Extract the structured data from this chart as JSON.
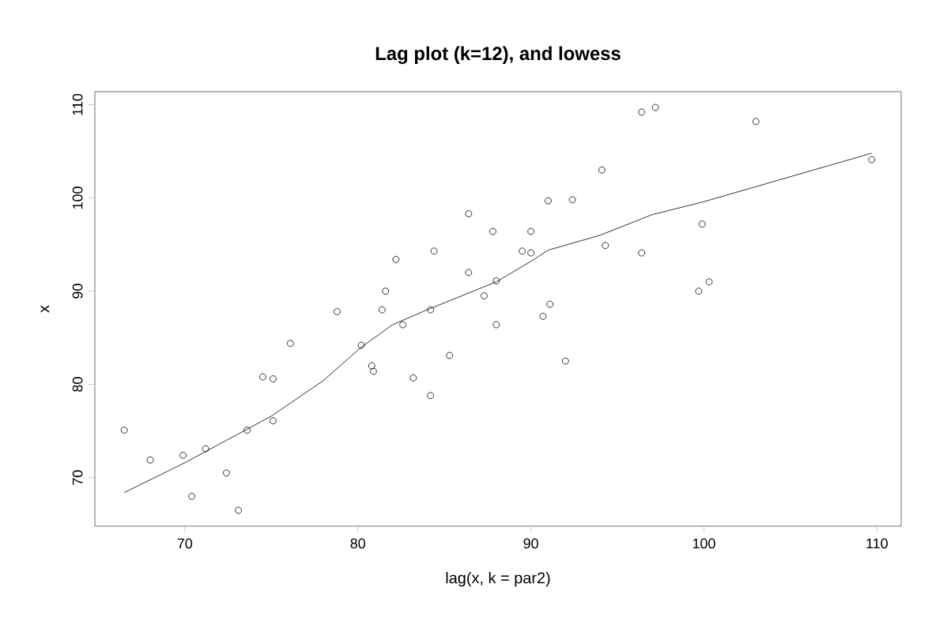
{
  "chart_data": {
    "type": "scatter",
    "title": "Lag plot (k=12), and lowess",
    "xlabel": "lag(x, k = par2)",
    "ylabel": "x",
    "xlim": [
      64.8,
      111.4
    ],
    "ylim": [
      64.8,
      111.4
    ],
    "xticks": [
      70,
      80,
      90,
      100,
      110
    ],
    "yticks": [
      70,
      80,
      90,
      100,
      110
    ],
    "grid": false,
    "series": [
      {
        "marker": "circle",
        "color": "#000000",
        "x": [
          66.5,
          68.0,
          69.9,
          70.4,
          71.2,
          72.4,
          73.1,
          73.6,
          74.5,
          75.1,
          75.1,
          76.1,
          78.8,
          80.2,
          80.8,
          80.9,
          81.4,
          81.6,
          82.2,
          82.6,
          83.2,
          84.2,
          84.2,
          84.4,
          85.3,
          86.4,
          86.4,
          87.3,
          87.8,
          88.0,
          88.0,
          89.5,
          90.0,
          90.0,
          90.7,
          91.1,
          91.0,
          92.0,
          92.4,
          94.1,
          94.3,
          96.4,
          96.4,
          97.2,
          99.7,
          99.9,
          100.3,
          103.0,
          109.7
        ],
        "values": [
          75.1,
          71.9,
          72.4,
          68.0,
          73.1,
          70.5,
          66.5,
          75.1,
          80.8,
          80.6,
          76.1,
          84.4,
          87.8,
          84.2,
          82.0,
          81.4,
          88.0,
          90.0,
          93.4,
          86.4,
          80.7,
          88.0,
          78.8,
          94.3,
          83.1,
          98.3,
          92.0,
          89.5,
          96.4,
          91.1,
          86.4,
          94.3,
          96.4,
          94.1,
          87.3,
          88.6,
          99.7,
          82.5,
          99.8,
          103.0,
          94.9,
          109.2,
          94.1,
          109.7,
          90.0,
          97.2,
          91.0,
          108.2,
          104.1
        ]
      },
      {
        "type": "line",
        "marker": "none",
        "line_style": "solid",
        "color": "#000000",
        "x": [
          66.5,
          70,
          75,
          78,
          80.2,
          82,
          84,
          88,
          90,
          91,
          94,
          97,
          100,
          109.7
        ],
        "values": [
          68.4,
          71.6,
          76.6,
          80.4,
          84.0,
          86.4,
          88.0,
          91.0,
          93.2,
          94.4,
          96.0,
          98.2,
          99.6,
          104.8
        ]
      }
    ]
  }
}
